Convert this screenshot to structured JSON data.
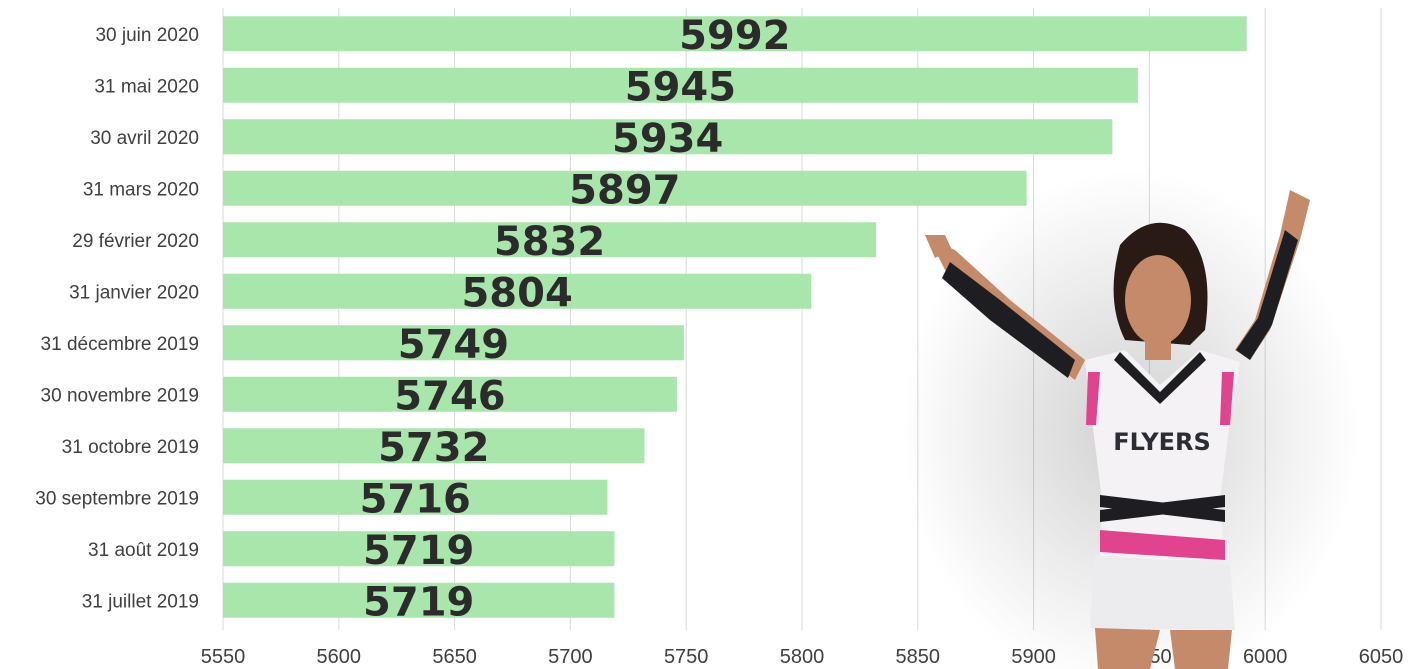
{
  "chart_data": {
    "type": "bar",
    "orientation": "horizontal",
    "title": "",
    "xlabel": "",
    "ylabel": "",
    "categories": [
      "30 juin 2020",
      "31 mai 2020",
      "30 avril 2020",
      "31 mars 2020",
      "29 février 2020",
      "31 janvier 2020",
      "31 décembre 2019",
      "30 novembre 2019",
      "31 octobre 2019",
      "30 septembre 2019",
      "31 août 2019",
      "31 juillet 2019"
    ],
    "values": [
      5992,
      5945,
      5934,
      5897,
      5832,
      5804,
      5749,
      5746,
      5732,
      5716,
      5719,
      5719
    ],
    "xlim": [
      5550,
      6050
    ],
    "xticks": [
      5550,
      5600,
      5650,
      5700,
      5750,
      5800,
      5850,
      5900,
      5950,
      6000,
      6050
    ],
    "grid": true,
    "bar_color": "#a9e6ab",
    "grid_color": "#d9d9d9",
    "data_labels": true
  },
  "illustration": {
    "subject": "cheerleader",
    "jersey_text": "FLYERS",
    "colors": {
      "skin": "#c48a6a",
      "uniform": "#f4f2f5",
      "accent": "#e0448f",
      "sleeve": "#1e1e22",
      "hair": "#2a1a15"
    }
  }
}
